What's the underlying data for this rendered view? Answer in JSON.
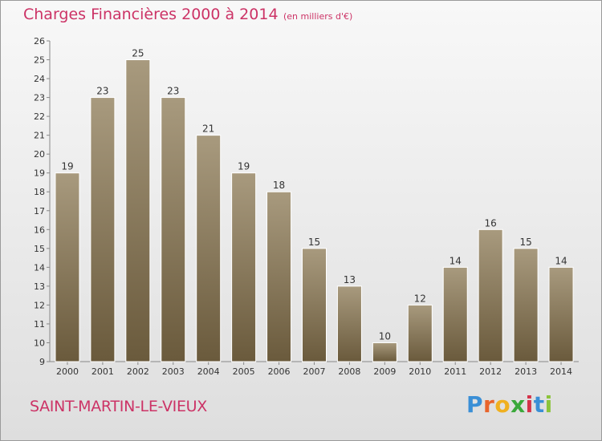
{
  "title": "Charges Financières 2000 à 2014",
  "unit_note": "(en milliers d'€)",
  "commune": "SAINT-MARTIN-LE-VIEUX",
  "logo": {
    "letters": [
      "P",
      "r",
      "o",
      "x",
      "i",
      "t",
      "i"
    ],
    "colors": [
      "#3a8fd6",
      "#e8642c",
      "#f0b020",
      "#3aa83a",
      "#d4334a",
      "#3a8fd6",
      "#8bc43a"
    ]
  },
  "colors": {
    "title": "#cc3366",
    "bar_top": "#a89a7e",
    "bar_bottom": "#6a5a3c"
  },
  "chart_data": {
    "type": "bar",
    "title": "Charges Financières 2000 à 2014",
    "subtitle": "(en milliers d'€)",
    "categories": [
      "2000",
      "2001",
      "2002",
      "2003",
      "2004",
      "2005",
      "2006",
      "2007",
      "2008",
      "2009",
      "2010",
      "2011",
      "2012",
      "2013",
      "2014"
    ],
    "values": [
      19,
      23,
      25,
      23,
      21,
      19,
      18,
      15,
      13,
      10,
      12,
      14,
      16,
      15,
      14
    ],
    "ylim": [
      9,
      26
    ],
    "yticks": [
      9,
      10,
      11,
      12,
      13,
      14,
      15,
      16,
      17,
      18,
      19,
      20,
      21,
      22,
      23,
      24,
      25,
      26
    ],
    "grid": false,
    "legend": "none"
  }
}
